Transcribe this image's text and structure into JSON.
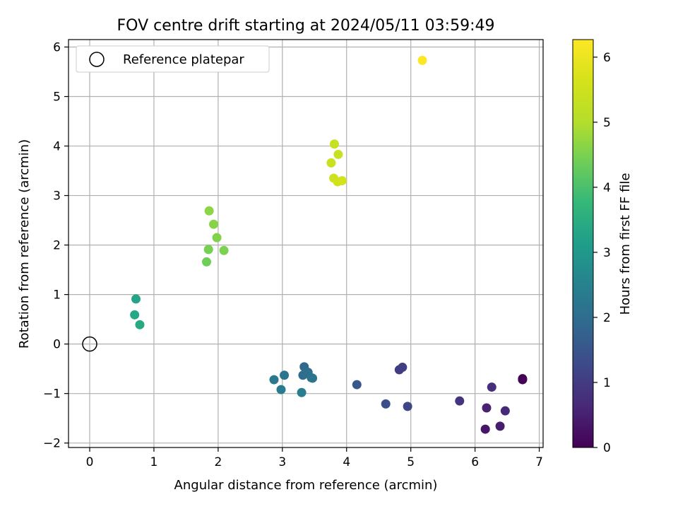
{
  "chart_data": {
    "type": "scatter",
    "title": "FOV centre drift starting at 2024/05/11 03:59:49",
    "xlabel": "Angular distance from reference (arcmin)",
    "ylabel": "Rotation from reference (arcmin)",
    "xlim": [
      -0.33,
      7.06
    ],
    "ylim": [
      -2.09,
      6.15
    ],
    "xticks": [
      0,
      1,
      2,
      3,
      4,
      5,
      6,
      7
    ],
    "yticks": [
      -2,
      -1,
      0,
      1,
      2,
      3,
      4,
      5,
      6
    ],
    "grid": true,
    "legend": {
      "placement": "top-left",
      "entries": [
        "Reference platepar"
      ]
    },
    "reference_point": {
      "x": 0,
      "y": 0,
      "label": "Reference platepar"
    },
    "colorbar": {
      "label": "Hours from first FF file",
      "colormap": "viridis",
      "range": [
        0,
        6.27
      ],
      "ticks": [
        0,
        1,
        2,
        3,
        4,
        5,
        6
      ]
    },
    "points": [
      {
        "x": 6.74,
        "y": -0.7,
        "c": 0.0
      },
      {
        "x": 6.74,
        "y": -0.72,
        "c": 0.05
      },
      {
        "x": 6.16,
        "y": -1.72,
        "c": 0.35
      },
      {
        "x": 6.39,
        "y": -1.66,
        "c": 0.45
      },
      {
        "x": 6.18,
        "y": -1.29,
        "c": 0.55
      },
      {
        "x": 6.47,
        "y": -1.35,
        "c": 0.65
      },
      {
        "x": 6.26,
        "y": -0.87,
        "c": 0.75
      },
      {
        "x": 5.76,
        "y": -1.15,
        "c": 0.85
      },
      {
        "x": 4.82,
        "y": -0.52,
        "c": 1.0
      },
      {
        "x": 4.87,
        "y": -0.47,
        "c": 1.05
      },
      {
        "x": 4.95,
        "y": -1.26,
        "c": 1.2
      },
      {
        "x": 4.61,
        "y": -1.21,
        "c": 1.35
      },
      {
        "x": 4.16,
        "y": -0.82,
        "c": 1.55
      },
      {
        "x": 3.34,
        "y": -0.46,
        "c": 1.9
      },
      {
        "x": 3.32,
        "y": -0.63,
        "c": 2.0
      },
      {
        "x": 3.4,
        "y": -0.57,
        "c": 2.05
      },
      {
        "x": 3.45,
        "y": -0.68,
        "c": 2.1
      },
      {
        "x": 3.47,
        "y": -0.69,
        "c": 2.15
      },
      {
        "x": 3.03,
        "y": -0.63,
        "c": 2.2
      },
      {
        "x": 2.87,
        "y": -0.72,
        "c": 2.3
      },
      {
        "x": 2.98,
        "y": -0.92,
        "c": 2.35
      },
      {
        "x": 3.3,
        "y": -0.98,
        "c": 2.4
      },
      {
        "x": 0.72,
        "y": 0.91,
        "c": 3.3
      },
      {
        "x": 0.7,
        "y": 0.59,
        "c": 3.35
      },
      {
        "x": 0.78,
        "y": 0.39,
        "c": 3.4
      },
      {
        "x": 1.82,
        "y": 1.66,
        "c": 4.4
      },
      {
        "x": 1.85,
        "y": 1.91,
        "c": 4.45
      },
      {
        "x": 2.09,
        "y": 1.89,
        "c": 4.5
      },
      {
        "x": 1.98,
        "y": 2.15,
        "c": 4.55
      },
      {
        "x": 1.93,
        "y": 2.42,
        "c": 4.6
      },
      {
        "x": 1.86,
        "y": 2.69,
        "c": 4.65
      },
      {
        "x": 3.81,
        "y": 4.04,
        "c": 5.35
      },
      {
        "x": 3.87,
        "y": 3.83,
        "c": 5.4
      },
      {
        "x": 3.76,
        "y": 3.66,
        "c": 5.45
      },
      {
        "x": 3.8,
        "y": 3.35,
        "c": 5.5
      },
      {
        "x": 3.86,
        "y": 3.28,
        "c": 5.55
      },
      {
        "x": 3.93,
        "y": 3.3,
        "c": 5.6
      },
      {
        "x": 5.18,
        "y": 5.73,
        "c": 6.27
      }
    ]
  }
}
